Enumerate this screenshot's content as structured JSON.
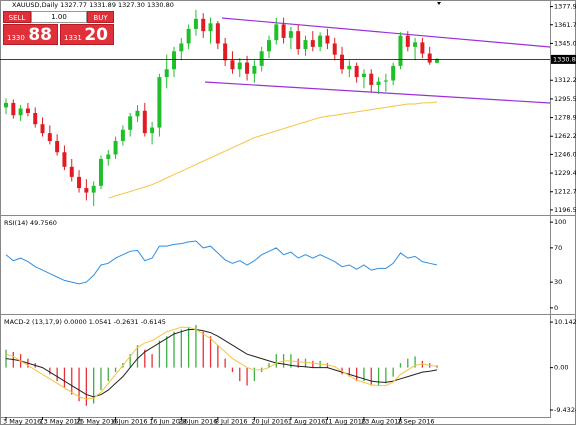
{
  "chart_data": [
    {
      "type": "candlestick",
      "title": "XAUUSD,Daily  1327.77 1331.89 1327.30 1330.80",
      "categories": [
        "3 May 2016",
        null,
        null,
        null,
        null,
        "13 May 2016",
        null,
        null,
        null,
        null,
        "25 May 2016",
        null,
        null,
        null,
        null,
        "6 Jun 2016",
        null,
        null,
        null,
        null,
        "16 Jun 2016",
        null,
        null,
        null,
        "28 Jun 2016",
        null,
        null,
        null,
        null,
        "8 Jul 2016",
        null,
        null,
        null,
        null,
        "20 Jul 2016",
        null,
        null,
        null,
        null,
        "1 Aug 2016",
        null,
        null,
        null,
        null,
        "11 Aug 2016",
        null,
        null,
        null,
        null,
        "23 Aug 2016",
        null,
        null,
        null,
        null,
        "2 Sep 2016",
        null,
        null,
        null,
        null,
        null
      ],
      "candles": [
        [
          1288,
          1296,
          1282,
          1292
        ],
        [
          1292,
          1295,
          1278,
          1281
        ],
        [
          1281,
          1290,
          1276,
          1287
        ],
        [
          1287,
          1292,
          1280,
          1283
        ],
        [
          1283,
          1288,
          1270,
          1273
        ],
        [
          1273,
          1279,
          1262,
          1265
        ],
        [
          1265,
          1272,
          1255,
          1258
        ],
        [
          1258,
          1264,
          1245,
          1248
        ],
        [
          1248,
          1254,
          1232,
          1235
        ],
        [
          1235,
          1242,
          1222,
          1226
        ],
        [
          1226,
          1232,
          1212,
          1216
        ],
        [
          1216,
          1224,
          1205,
          1212
        ],
        [
          1212,
          1222,
          1200,
          1218
        ],
        [
          1218,
          1245,
          1215,
          1242
        ],
        [
          1242,
          1250,
          1236,
          1246
        ],
        [
          1246,
          1262,
          1242,
          1258
        ],
        [
          1258,
          1272,
          1254,
          1268
        ],
        [
          1268,
          1283,
          1262,
          1280
        ],
        [
          1280,
          1290,
          1275,
          1285
        ],
        [
          1285,
          1292,
          1262,
          1265
        ],
        [
          1265,
          1275,
          1255,
          1270
        ],
        [
          1270,
          1318,
          1262,
          1315
        ],
        [
          1315,
          1335,
          1305,
          1322
        ],
        [
          1322,
          1342,
          1315,
          1338
        ],
        [
          1338,
          1350,
          1330,
          1345
        ],
        [
          1345,
          1362,
          1340,
          1358
        ],
        [
          1358,
          1375,
          1352,
          1367
        ],
        [
          1367,
          1372,
          1350,
          1356
        ],
        [
          1356,
          1368,
          1345,
          1363
        ],
        [
          1363,
          1365,
          1340,
          1345
        ],
        [
          1345,
          1350,
          1325,
          1330
        ],
        [
          1330,
          1338,
          1318,
          1322
        ],
        [
          1322,
          1332,
          1315,
          1328
        ],
        [
          1328,
          1334,
          1312,
          1318
        ],
        [
          1318,
          1330,
          1310,
          1325
        ],
        [
          1325,
          1342,
          1320,
          1338
        ],
        [
          1338,
          1352,
          1332,
          1348
        ],
        [
          1348,
          1368,
          1344,
          1362
        ],
        [
          1362,
          1368,
          1345,
          1350
        ],
        [
          1350,
          1360,
          1340,
          1356
        ],
        [
          1356,
          1362,
          1335,
          1340
        ],
        [
          1340,
          1352,
          1334,
          1348
        ],
        [
          1348,
          1356,
          1338,
          1342
        ],
        [
          1342,
          1355,
          1338,
          1352
        ],
        [
          1352,
          1358,
          1340,
          1345
        ],
        [
          1345,
          1350,
          1330,
          1335
        ],
        [
          1335,
          1342,
          1318,
          1322
        ],
        [
          1322,
          1330,
          1315,
          1325
        ],
        [
          1325,
          1328,
          1310,
          1315
        ],
        [
          1315,
          1322,
          1305,
          1318
        ],
        [
          1318,
          1322,
          1302,
          1308
        ],
        [
          1308,
          1315,
          1300,
          1311
        ],
        [
          1311,
          1318,
          1302,
          1312
        ],
        [
          1312,
          1328,
          1308,
          1325
        ],
        [
          1325,
          1355,
          1322,
          1352
        ],
        [
          1352,
          1356,
          1338,
          1342
        ],
        [
          1342,
          1350,
          1330,
          1346
        ],
        [
          1346,
          1350,
          1332,
          1336
        ],
        [
          1336,
          1342,
          1326,
          1328
        ],
        [
          1327.77,
          1331.89,
          1327.3,
          1330.8
        ]
      ],
      "up_color": "#1fbf2a",
      "down_color": "#e01b24",
      "lines": [
        {
          "color": "#f6c343",
          "values": [
            null,
            null,
            null,
            null,
            null,
            null,
            null,
            null,
            null,
            null,
            null,
            null,
            null,
            null,
            1207,
            1209,
            1211,
            1213,
            1215,
            1217,
            1219,
            1222,
            1225,
            1228,
            1231,
            1234,
            1237,
            1240,
            1243,
            1246,
            1249,
            1252,
            1255,
            1258,
            1261,
            1263,
            1265,
            1267,
            1269,
            1271,
            1273,
            1275,
            1277,
            1279,
            1280,
            1281,
            1282,
            1283,
            1284,
            1285,
            1286,
            1287,
            1288,
            1289,
            1290,
            1291,
            1291,
            1292,
            1292,
            1293
          ]
        }
      ],
      "last_price": {
        "value": 1330.8,
        "label": "1330.80"
      },
      "ylim": [
        1192,
        1382
      ],
      "yticks": [
        {
          "value": 1377.9,
          "label": "1377.90"
        },
        {
          "value": 1361.7,
          "label": "1361.70"
        },
        1345.05,
        {
          "value": 1312.2,
          "label": "1312.20"
        },
        1295.55,
        {
          "value": 1278.9,
          "label": "1278.90"
        },
        1262.25,
        1246.05,
        {
          "value": 1229.4,
          "label": "1229.40"
        },
        1212.75,
        1196.55
      ],
      "grid": false
    },
    {
      "type": "line",
      "title": "RSI(14) 49.7560",
      "series": [
        {
          "color": "#2f8fdf",
          "values": [
            62,
            55,
            58,
            54,
            48,
            44,
            40,
            36,
            32,
            30,
            28,
            30,
            38,
            50,
            52,
            58,
            62,
            66,
            67,
            55,
            58,
            72,
            72,
            74,
            75,
            77,
            78,
            70,
            72,
            64,
            56,
            52,
            55,
            50,
            55,
            62,
            66,
            70,
            62,
            65,
            58,
            62,
            58,
            62,
            58,
            54,
            48,
            50,
            45,
            50,
            44,
            46,
            46,
            52,
            64,
            58,
            60,
            54,
            52,
            50
          ]
        }
      ],
      "ylim": [
        -6,
        106
      ],
      "yticks": [
        100,
        70,
        30,
        0
      ],
      "grid": false
    },
    {
      "type": "macd",
      "title": "MACD-2 (13,17,9) 0.0000 1.0541 -0.2631 -0.6145",
      "histogram": [
        4,
        3.5,
        3,
        2,
        1,
        0,
        -1.5,
        -3,
        -4.5,
        -6,
        -7.5,
        -8.5,
        -8,
        -5,
        -3,
        -1,
        1,
        3,
        5,
        4,
        3,
        6,
        7,
        8,
        8.5,
        9,
        9.5,
        8,
        7,
        5,
        2,
        -1,
        -3,
        -4,
        -3,
        -1,
        1,
        3,
        3,
        3,
        2,
        2,
        1.5,
        1.5,
        1,
        0,
        -1.5,
        -2,
        -3,
        -3,
        -4,
        -4,
        -3.5,
        -2,
        1,
        2,
        2.5,
        1.5,
        1,
        0.5
      ],
      "up_color": "#3cb043",
      "down_color": "#e8303a",
      "lines": [
        {
          "color": "#222222",
          "values": [
            2,
            1.8,
            1.5,
            1,
            0.5,
            0,
            -1,
            -2,
            -3,
            -4,
            -5,
            -6,
            -6.5,
            -6,
            -5,
            -3.5,
            -2,
            0,
            2,
            3.5,
            4.5,
            5.5,
            6.5,
            7.5,
            8,
            8.5,
            8.5,
            8.2,
            7.8,
            7,
            6,
            5,
            4,
            3,
            2.5,
            2,
            1.5,
            1,
            0.8,
            0.5,
            0.3,
            0.2,
            0,
            0,
            0,
            -0.5,
            -1,
            -1.5,
            -2,
            -2.5,
            -3,
            -3.2,
            -3.3,
            -3,
            -2.5,
            -2,
            -1.5,
            -1,
            -0.8,
            -0.5
          ]
        },
        {
          "color": "#f6c343",
          "values": [
            3,
            2.5,
            1.5,
            0.5,
            -0.5,
            -1.5,
            -2.5,
            -3.5,
            -4.5,
            -5.5,
            -6.5,
            -7,
            -6.8,
            -5.5,
            -3.5,
            -1.5,
            0.5,
            2.5,
            4.5,
            5.5,
            6,
            7,
            8,
            8.5,
            9,
            9,
            8.5,
            7.5,
            6.5,
            5,
            3.5,
            2,
            1,
            0,
            -0.5,
            -0.5,
            0,
            1,
            1.5,
            1.5,
            1.3,
            1.2,
            1,
            0.8,
            0.6,
            0.2,
            -0.8,
            -1.8,
            -2.8,
            -3.3,
            -3.8,
            -4,
            -4,
            -3.2,
            -1.5,
            -0.5,
            0.5,
            0.8,
            0.5,
            0.3
          ]
        }
      ],
      "ylim": [
        -11,
        11.5
      ],
      "yticks": [
        10.1424,
        {
          "value": 0,
          "label": "0.00"
        },
        -9.4324
      ],
      "grid": false
    }
  ],
  "trade_panel": {
    "sell": "SELL",
    "lot": "1.00",
    "buy": "BUY",
    "bid_small": "1330",
    "bid_big": "88",
    "ask_small": "1331",
    "ask_big": "20"
  }
}
